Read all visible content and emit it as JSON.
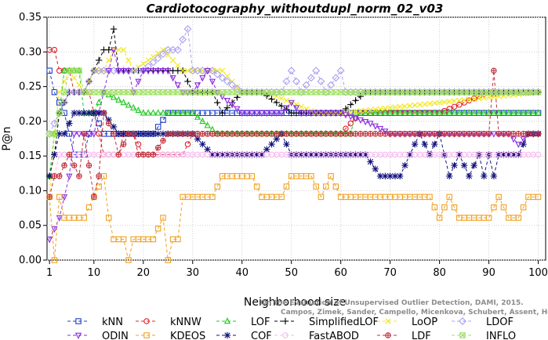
{
  "chart_data": {
    "type": "line",
    "title": "Cardiotocography_withoutdupl_norm_02_v03",
    "xlabel": "Neighborhood size",
    "ylabel": "P@n",
    "xlim": [
      1,
      100
    ],
    "ylim": [
      0,
      0.35
    ],
    "x_ticks": [
      1,
      10,
      20,
      30,
      40,
      50,
      60,
      70,
      80,
      90,
      100
    ],
    "y_ticks": [
      "0.00",
      "0.05",
      "0.10",
      "0.15",
      "0.20",
      "0.25",
      "0.30",
      "0.35"
    ],
    "grid": true,
    "legend_position": "bottom",
    "watermark": [
      "Campos, Zimek, Sander, Campello, Micenkova, Schubert, Assent, Houle",
      "On the Evaluation of Unsupervised Outlier Detection, DAMI, 2015."
    ],
    "series": [
      {
        "name": "kNN",
        "color": "#1f3fc8",
        "marker": "square",
        "values": [
          [
            1,
            0.273
          ],
          [
            2,
            0.242
          ],
          [
            4,
            0.212
          ],
          [
            5,
            0.182
          ],
          [
            6,
            0.152
          ],
          [
            8,
            0.152
          ],
          [
            9,
            0.182
          ],
          [
            10,
            0.212
          ],
          [
            12,
            0.182
          ],
          [
            15,
            0.182
          ],
          [
            16,
            0.182
          ],
          [
            19,
            0.182
          ],
          [
            20,
            0.182
          ],
          [
            22,
            0.182
          ],
          [
            25,
            0.212
          ],
          [
            30,
            0.212
          ],
          [
            100,
            0.212
          ]
        ]
      },
      {
        "name": "kNNW",
        "color": "#e0212b",
        "marker": "circle",
        "values": [
          [
            1,
            0.303
          ],
          [
            2,
            0.303
          ],
          [
            3,
            0.273
          ],
          [
            5,
            0.273
          ],
          [
            6,
            0.242
          ],
          [
            9,
            0.242
          ],
          [
            10,
            0.212
          ],
          [
            12,
            0.152
          ],
          [
            15,
            0.152
          ],
          [
            16,
            0.182
          ],
          [
            18,
            0.182
          ],
          [
            20,
            0.152
          ],
          [
            28,
            0.152
          ],
          [
            30,
            0.182
          ],
          [
            40,
            0.182
          ],
          [
            50,
            0.182
          ],
          [
            60,
            0.182
          ],
          [
            64,
            0.212
          ],
          [
            80,
            0.212
          ],
          [
            90,
            0.242
          ],
          [
            100,
            0.242
          ]
        ]
      },
      {
        "name": "LOF",
        "color": "#1fc81f",
        "marker": "triangle",
        "values": [
          [
            1,
            0.121
          ],
          [
            2,
            0.182
          ],
          [
            3,
            0.212
          ],
          [
            4,
            0.273
          ],
          [
            7,
            0.273
          ],
          [
            8,
            0.212
          ],
          [
            10,
            0.212
          ],
          [
            12,
            0.242
          ],
          [
            20,
            0.212
          ],
          [
            30,
            0.212
          ],
          [
            35,
            0.182
          ],
          [
            40,
            0.182
          ],
          [
            62,
            0.182
          ],
          [
            63,
            0.212
          ],
          [
            100,
            0.212
          ]
        ]
      },
      {
        "name": "SimplifiedLOF",
        "color": "#000000",
        "marker": "plus",
        "values": [
          [
            1,
            0.121
          ],
          [
            2,
            0.152
          ],
          [
            3,
            0.212
          ],
          [
            5,
            0.242
          ],
          [
            8,
            0.242
          ],
          [
            10,
            0.273
          ],
          [
            12,
            0.303
          ],
          [
            13,
            0.303
          ],
          [
            14,
            0.333
          ],
          [
            15,
            0.273
          ],
          [
            20,
            0.273
          ],
          [
            28,
            0.273
          ],
          [
            30,
            0.242
          ],
          [
            34,
            0.242
          ],
          [
            36,
            0.212
          ],
          [
            40,
            0.242
          ],
          [
            44,
            0.242
          ],
          [
            50,
            0.212
          ],
          [
            60,
            0.212
          ],
          [
            65,
            0.242
          ],
          [
            100,
            0.242
          ]
        ]
      },
      {
        "name": "LoOP",
        "color": "#f0e81c",
        "marker": "x",
        "values": [
          [
            1,
            0.091
          ],
          [
            2,
            0.182
          ],
          [
            3,
            0.242
          ],
          [
            5,
            0.273
          ],
          [
            8,
            0.242
          ],
          [
            10,
            0.273
          ],
          [
            12,
            0.273
          ],
          [
            14,
            0.303
          ],
          [
            16,
            0.303
          ],
          [
            18,
            0.273
          ],
          [
            24,
            0.303
          ],
          [
            28,
            0.273
          ],
          [
            32,
            0.273
          ],
          [
            36,
            0.273
          ],
          [
            40,
            0.242
          ],
          [
            45,
            0.242
          ],
          [
            55,
            0.212
          ],
          [
            60,
            0.212
          ],
          [
            100,
            0.242
          ]
        ]
      },
      {
        "name": "LDOF",
        "color": "#a9a0f0",
        "marker": "diamond",
        "values": [
          [
            1,
            0.182
          ],
          [
            3,
            0.212
          ],
          [
            5,
            0.242
          ],
          [
            8,
            0.242
          ],
          [
            10,
            0.273
          ],
          [
            15,
            0.273
          ],
          [
            20,
            0.273
          ],
          [
            25,
            0.303
          ],
          [
            27,
            0.303
          ],
          [
            29,
            0.333
          ],
          [
            30,
            0.273
          ],
          [
            34,
            0.273
          ],
          [
            40,
            0.242
          ],
          [
            48,
            0.242
          ],
          [
            50,
            0.273
          ],
          [
            52,
            0.242
          ],
          [
            55,
            0.273
          ],
          [
            57,
            0.242
          ],
          [
            60,
            0.273
          ],
          [
            61,
            0.242
          ],
          [
            100,
            0.242
          ]
        ]
      },
      {
        "name": "ODIN",
        "color": "#8b2be2",
        "marker": "triangle-down",
        "values": [
          [
            1,
            0.03
          ],
          [
            2,
            0.045
          ],
          [
            3,
            0.061
          ],
          [
            4,
            0.091
          ],
          [
            5,
            0.121
          ],
          [
            6,
            0.182
          ],
          [
            8,
            0.182
          ],
          [
            10,
            0.182
          ],
          [
            12,
            0.242
          ],
          [
            13,
            0.273
          ],
          [
            14,
            0.303
          ],
          [
            15,
            0.273
          ],
          [
            17,
            0.273
          ],
          [
            18,
            0.242
          ],
          [
            20,
            0.273
          ],
          [
            25,
            0.273
          ],
          [
            28,
            0.242
          ],
          [
            30,
            0.242
          ],
          [
            33,
            0.273
          ],
          [
            35,
            0.242
          ],
          [
            40,
            0.212
          ],
          [
            44,
            0.212
          ],
          [
            48,
            0.212
          ],
          [
            50,
            0.227
          ],
          [
            52,
            0.212
          ],
          [
            56,
            0.212
          ],
          [
            60,
            0.212
          ],
          [
            66,
            0.197
          ],
          [
            70,
            0.182
          ],
          [
            74,
            0.182
          ],
          [
            80,
            0.182
          ],
          [
            86,
            0.182
          ],
          [
            90,
            0.182
          ],
          [
            94,
            0.182
          ],
          [
            96,
            0.167
          ],
          [
            98,
            0.182
          ],
          [
            100,
            0.182
          ]
        ]
      },
      {
        "name": "KDEOS",
        "color": "#f0a020",
        "marker": "square",
        "values": [
          [
            1,
            0.091
          ],
          [
            2,
            0.0
          ],
          [
            3,
            0.091
          ],
          [
            4,
            0.061
          ],
          [
            6,
            0.061
          ],
          [
            8,
            0.061
          ],
          [
            10,
            0.091
          ],
          [
            12,
            0.121
          ],
          [
            13,
            0.061
          ],
          [
            14,
            0.03
          ],
          [
            16,
            0.03
          ],
          [
            17,
            0.0
          ],
          [
            18,
            0.03
          ],
          [
            22,
            0.03
          ],
          [
            24,
            0.061
          ],
          [
            25,
            0.0
          ],
          [
            26,
            0.03
          ],
          [
            27,
            0.03
          ],
          [
            28,
            0.091
          ],
          [
            34,
            0.091
          ],
          [
            36,
            0.121
          ],
          [
            42,
            0.121
          ],
          [
            44,
            0.091
          ],
          [
            48,
            0.091
          ],
          [
            50,
            0.121
          ],
          [
            54,
            0.121
          ],
          [
            56,
            0.091
          ],
          [
            58,
            0.121
          ],
          [
            60,
            0.091
          ],
          [
            70,
            0.091
          ],
          [
            78,
            0.091
          ],
          [
            80,
            0.061
          ],
          [
            82,
            0.091
          ],
          [
            84,
            0.061
          ],
          [
            88,
            0.061
          ],
          [
            90,
            0.061
          ],
          [
            92,
            0.091
          ],
          [
            94,
            0.061
          ],
          [
            96,
            0.061
          ],
          [
            98,
            0.091
          ],
          [
            100,
            0.091
          ]
        ]
      },
      {
        "name": "COF",
        "color": "#10107a",
        "marker": "asterisk",
        "values": [
          [
            1,
            0.121
          ],
          [
            2,
            0.152
          ],
          [
            3,
            0.182
          ],
          [
            4,
            0.182
          ],
          [
            6,
            0.212
          ],
          [
            10,
            0.212
          ],
          [
            12,
            0.212
          ],
          [
            15,
            0.182
          ],
          [
            20,
            0.182
          ],
          [
            25,
            0.182
          ],
          [
            30,
            0.182
          ],
          [
            34,
            0.152
          ],
          [
            40,
            0.152
          ],
          [
            44,
            0.152
          ],
          [
            48,
            0.182
          ],
          [
            50,
            0.152
          ],
          [
            60,
            0.152
          ],
          [
            62,
            0.152
          ],
          [
            65,
            0.152
          ],
          [
            68,
            0.121
          ],
          [
            72,
            0.121
          ],
          [
            74,
            0.152
          ],
          [
            76,
            0.182
          ],
          [
            78,
            0.152
          ],
          [
            80,
            0.182
          ],
          [
            82,
            0.121
          ],
          [
            84,
            0.152
          ],
          [
            86,
            0.121
          ],
          [
            88,
            0.152
          ],
          [
            89,
            0.121
          ],
          [
            90,
            0.152
          ],
          [
            91,
            0.121
          ],
          [
            92,
            0.152
          ],
          [
            94,
            0.152
          ],
          [
            96,
            0.152
          ],
          [
            98,
            0.182
          ],
          [
            100,
            0.182
          ]
        ]
      },
      {
        "name": "FastABOD",
        "color": "#f7b8f0",
        "marker": "circle",
        "values": [
          [
            1,
            0.091
          ],
          [
            3,
            0.152
          ],
          [
            5,
            0.152
          ],
          [
            10,
            0.152
          ],
          [
            20,
            0.152
          ],
          [
            30,
            0.152
          ],
          [
            40,
            0.152
          ],
          [
            50,
            0.152
          ],
          [
            60,
            0.152
          ],
          [
            70,
            0.152
          ],
          [
            80,
            0.152
          ],
          [
            90,
            0.152
          ],
          [
            100,
            0.152
          ]
        ]
      },
      {
        "name": "LDF",
        "color": "#c0303a",
        "marker": "circle-plus",
        "values": [
          [
            1,
            0.091
          ],
          [
            2,
            0.121
          ],
          [
            3,
            0.121
          ],
          [
            5,
            0.152
          ],
          [
            7,
            0.121
          ],
          [
            8,
            0.182
          ],
          [
            10,
            0.091
          ],
          [
            11,
            0.121
          ],
          [
            12,
            0.212
          ],
          [
            14,
            0.182
          ],
          [
            15,
            0.152
          ],
          [
            17,
            0.182
          ],
          [
            18,
            0.182
          ],
          [
            19,
            0.152
          ],
          [
            20,
            0.152
          ],
          [
            22,
            0.152
          ],
          [
            25,
            0.182
          ],
          [
            28,
            0.182
          ],
          [
            30,
            0.182
          ],
          [
            34,
            0.182
          ],
          [
            38,
            0.182
          ],
          [
            40,
            0.182
          ],
          [
            44,
            0.182
          ],
          [
            50,
            0.182
          ],
          [
            56,
            0.182
          ],
          [
            60,
            0.182
          ],
          [
            62,
            0.182
          ],
          [
            66,
            0.182
          ],
          [
            70,
            0.182
          ],
          [
            75,
            0.182
          ],
          [
            80,
            0.182
          ],
          [
            85,
            0.182
          ],
          [
            88,
            0.182
          ],
          [
            90,
            0.182
          ],
          [
            91,
            0.273
          ],
          [
            92,
            0.182
          ],
          [
            94,
            0.182
          ],
          [
            100,
            0.182
          ]
        ]
      },
      {
        "name": "INFLO",
        "color": "#9fe060",
        "marker": "box-x",
        "values": [
          [
            1,
            0.182
          ],
          [
            2,
            0.182
          ],
          [
            3,
            0.212
          ],
          [
            4,
            0.242
          ],
          [
            5,
            0.273
          ],
          [
            6,
            0.273
          ],
          [
            7,
            0.273
          ],
          [
            8,
            0.242
          ],
          [
            10,
            0.242
          ],
          [
            14,
            0.242
          ],
          [
            20,
            0.242
          ],
          [
            30,
            0.242
          ],
          [
            40,
            0.242
          ],
          [
            50,
            0.242
          ],
          [
            60,
            0.242
          ],
          [
            70,
            0.242
          ],
          [
            80,
            0.242
          ],
          [
            90,
            0.242
          ],
          [
            100,
            0.242
          ]
        ]
      }
    ]
  }
}
